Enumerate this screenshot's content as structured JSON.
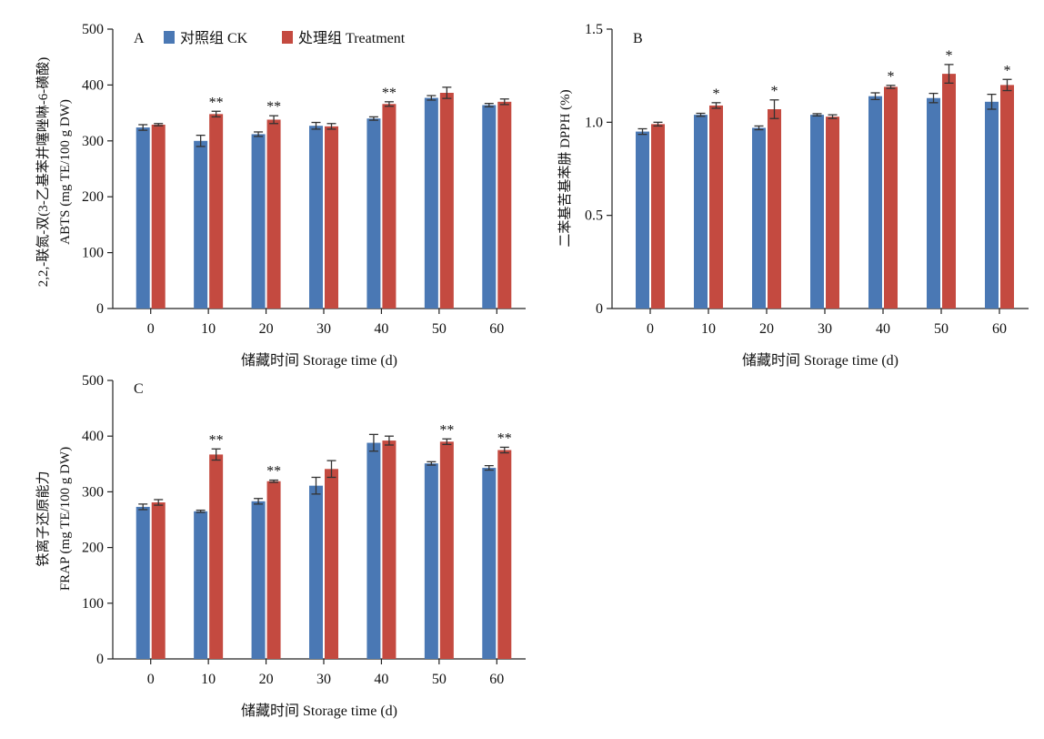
{
  "colors": {
    "ck": "#4a78b4",
    "treatment": "#c44a40",
    "axis": "#222222",
    "errorbar": "#333333"
  },
  "legend": {
    "ck": "对照组 CK",
    "treatment": "处理组 Treatment"
  },
  "chart_data": [
    {
      "panel": "A",
      "type": "bar",
      "ylabel_line1": "2,2,-联氮-双(3-乙基苯并噻唑啉-6-磺酸)",
      "ylabel_line2": "ABTS (mg TE/100 g DW)",
      "xlabel": "储藏时间 Storage time (d)",
      "categories": [
        "0",
        "10",
        "20",
        "30",
        "40",
        "50",
        "60"
      ],
      "ylim": [
        0,
        500
      ],
      "yticks": [
        "0",
        "100",
        "200",
        "300",
        "400",
        "500"
      ],
      "series": [
        {
          "name": "对照组 CK",
          "values": [
            324,
            300,
            312,
            327,
            340,
            377,
            364
          ],
          "errors": [
            5,
            10,
            4,
            6,
            3,
            4,
            3
          ]
        },
        {
          "name": "处理组 Treatment",
          "values": [
            329,
            348,
            338,
            326,
            366,
            386,
            370
          ],
          "errors": [
            2,
            5,
            7,
            5,
            4,
            10,
            5
          ]
        }
      ],
      "significance": [
        "",
        "**",
        "**",
        "",
        "**",
        "",
        ""
      ]
    },
    {
      "panel": "B",
      "type": "bar",
      "ylabel_line1": "二苯基苦基苯肼 DPPH (%)",
      "ylabel_line2": "",
      "xlabel": "储藏时间 Storage time (d)",
      "categories": [
        "0",
        "10",
        "20",
        "30",
        "40",
        "50",
        "60"
      ],
      "ylim": [
        0,
        1.5
      ],
      "yticks": [
        "0",
        "0.5",
        "1.0",
        "1.5"
      ],
      "series": [
        {
          "name": "对照组 CK",
          "values": [
            0.95,
            1.04,
            0.97,
            1.04,
            1.14,
            1.13,
            1.11
          ],
          "errors": [
            0.015,
            0.008,
            0.01,
            0.006,
            0.018,
            0.025,
            0.04
          ]
        },
        {
          "name": "处理组 Treatment",
          "values": [
            0.99,
            1.09,
            1.07,
            1.03,
            1.19,
            1.26,
            1.2
          ],
          "errors": [
            0.01,
            0.015,
            0.05,
            0.01,
            0.008,
            0.05,
            0.03
          ]
        }
      ],
      "significance": [
        "",
        "*",
        "*",
        "",
        "*",
        "*",
        "*"
      ]
    },
    {
      "panel": "C",
      "type": "bar",
      "ylabel_line1": "铁离子还原能力",
      "ylabel_line2": "FRAP (mg TE/100 g DW)",
      "xlabel": "储藏时间 Storage time (d)",
      "categories": [
        "0",
        "10",
        "20",
        "30",
        "40",
        "50",
        "60"
      ],
      "ylim": [
        0,
        500
      ],
      "yticks": [
        "0",
        "100",
        "200",
        "300",
        "400",
        "500"
      ],
      "series": [
        {
          "name": "对照组 CK",
          "values": [
            273,
            265,
            283,
            311,
            388,
            351,
            343
          ],
          "errors": [
            5,
            2,
            5,
            15,
            15,
            3,
            4
          ]
        },
        {
          "name": "处理组 Treatment",
          "values": [
            281,
            367,
            319,
            341,
            392,
            390,
            375
          ],
          "errors": [
            5,
            10,
            2,
            15,
            8,
            5,
            5
          ]
        }
      ],
      "significance": [
        "",
        "**",
        "**",
        "",
        "",
        "**",
        "**"
      ]
    }
  ]
}
